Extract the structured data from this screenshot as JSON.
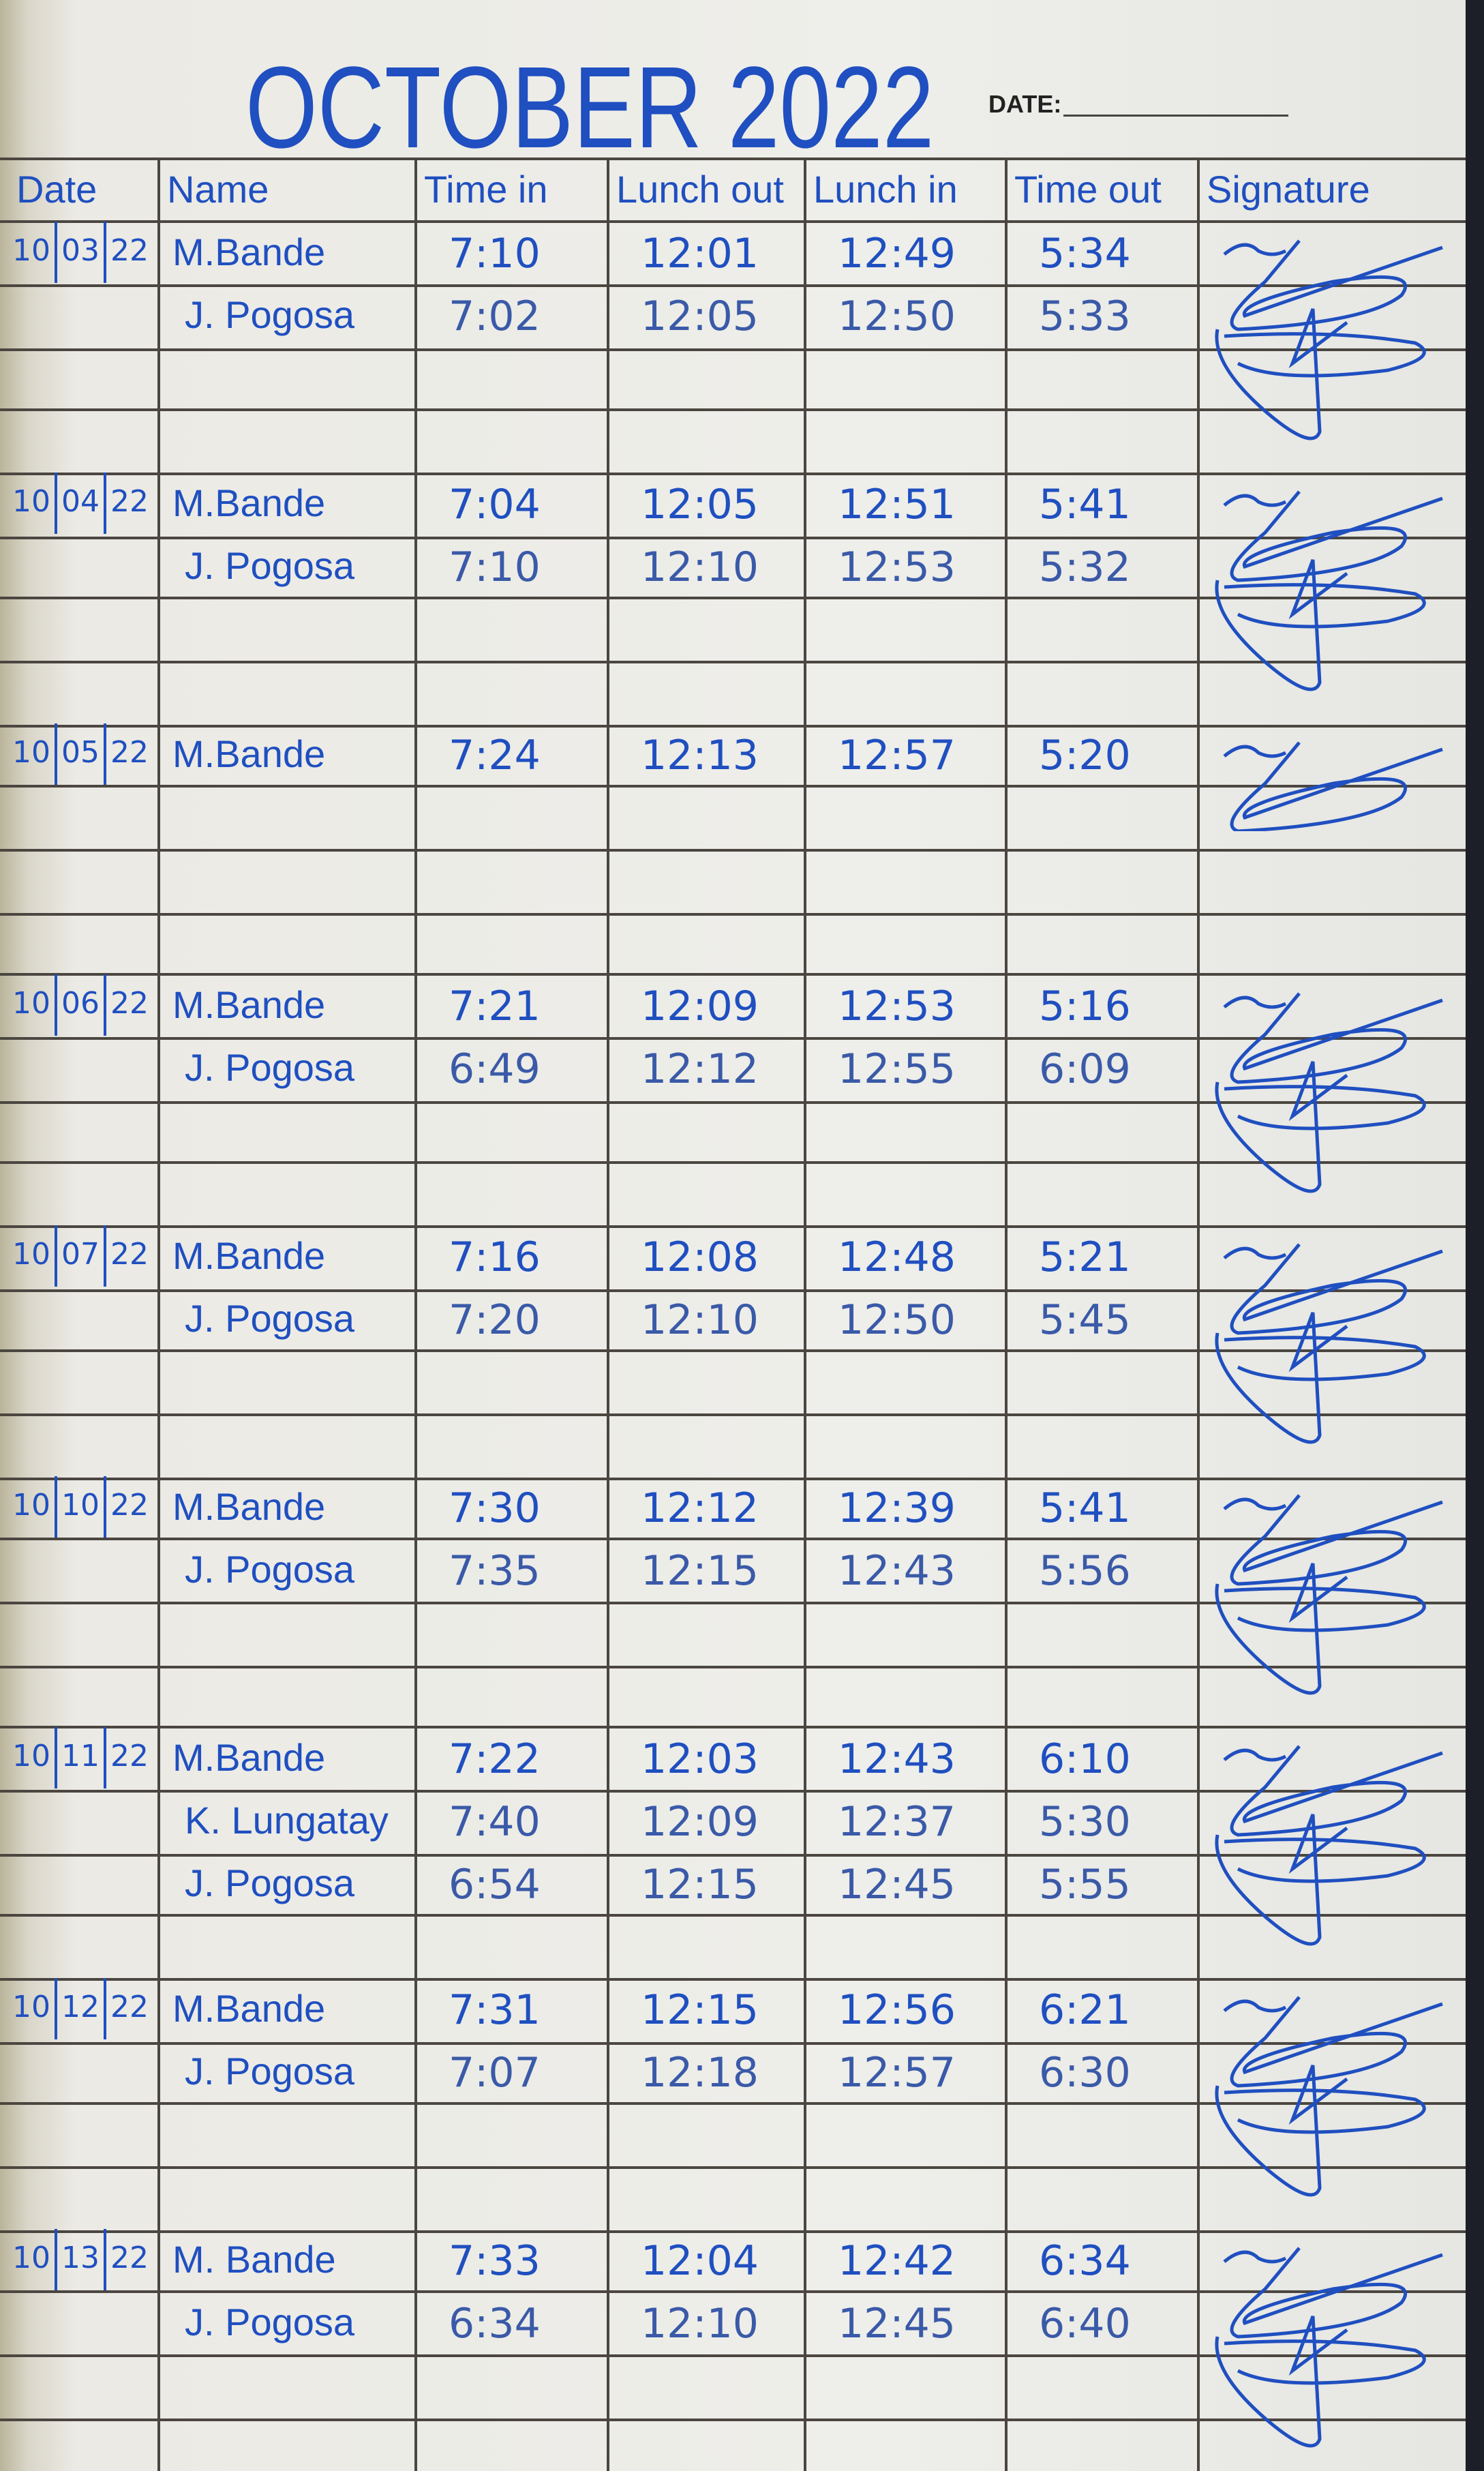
{
  "title": "OCTOBER 2022",
  "date_label": "DATE:",
  "headers": [
    "Date",
    "Name",
    "Time in",
    "Lunch out",
    "Lunch in",
    "Time out",
    "Signature"
  ],
  "ink_color": "#1f4fc0",
  "entries": [
    {
      "date": [
        "10",
        "03",
        "22"
      ],
      "rows": [
        [
          "M.Bande",
          "7:10",
          "12:01",
          "12:49",
          "5:34"
        ],
        [
          "J. Pogosa",
          "7:02",
          "12:05",
          "12:50",
          "5:33"
        ]
      ]
    },
    {
      "date": [
        "10",
        "04",
        "22"
      ],
      "rows": [
        [
          "M.Bande",
          "7:04",
          "12:05",
          "12:51",
          "5:41"
        ],
        [
          "J. Pogosa",
          "7:10",
          "12:10",
          "12:53",
          "5:32"
        ]
      ]
    },
    {
      "date": [
        "10",
        "05",
        "22"
      ],
      "rows": [
        [
          "M.Bande",
          "7:24",
          "12:13",
          "12:57",
          "5:20"
        ]
      ]
    },
    {
      "date": [
        "10",
        "06",
        "22"
      ],
      "rows": [
        [
          "M.Bande",
          "7:21",
          "12:09",
          "12:53",
          "5:16"
        ],
        [
          "J. Pogosa",
          "6:49",
          "12:12",
          "12:55",
          "6:09"
        ]
      ]
    },
    {
      "date": [
        "10",
        "07",
        "22"
      ],
      "rows": [
        [
          "M.Bande",
          "7:16",
          "12:08",
          "12:48",
          "5:21"
        ],
        [
          "J. Pogosa",
          "7:20",
          "12:10",
          "12:50",
          "5:45"
        ]
      ]
    },
    {
      "date": [
        "10",
        "10",
        "22"
      ],
      "rows": [
        [
          "M.Bande",
          "7:30",
          "12:12",
          "12:39",
          "5:41"
        ],
        [
          "J. Pogosa",
          "7:35",
          "12:15",
          "12:43",
          "5:56"
        ]
      ]
    },
    {
      "date": [
        "10",
        "11",
        "22"
      ],
      "rows": [
        [
          "M.Bande",
          "7:22",
          "12:03",
          "12:43",
          "6:10"
        ],
        [
          "K. Lungatay",
          "7:40",
          "12:09",
          "12:37",
          "5:30"
        ],
        [
          "J. Pogosa",
          "6:54",
          "12:15",
          "12:45",
          "5:55"
        ]
      ]
    },
    {
      "date": [
        "10",
        "12",
        "22"
      ],
      "rows": [
        [
          "M.Bande",
          "7:31",
          "12:15",
          "12:56",
          "6:21"
        ],
        [
          "J. Pogosa",
          "7:07",
          "12:18",
          "12:57",
          "6:30"
        ]
      ]
    },
    {
      "date": [
        "10",
        "13",
        "22"
      ],
      "rows": [
        [
          "M. Bande",
          "7:33",
          "12:04",
          "12:42",
          "6:34"
        ],
        [
          "J. Pogosa",
          "6:34",
          "12:10",
          "12:45",
          "6:40"
        ]
      ]
    }
  ]
}
